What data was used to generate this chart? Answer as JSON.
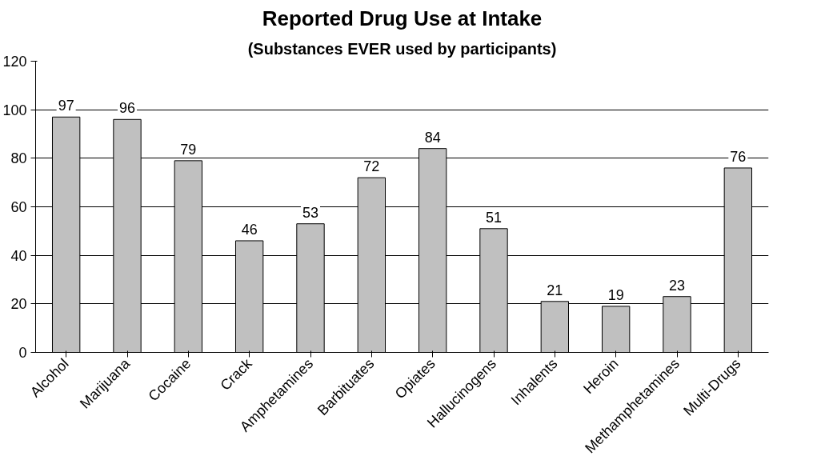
{
  "chart_data": {
    "type": "bar",
    "title": "Reported Drug Use at Intake",
    "subtitle": "(Substances EVER used by participants)",
    "categories": [
      "Alcohol",
      "Marijuana",
      "Cocaine",
      "Crack",
      "Amphetamines",
      "Barbituates",
      "Opiates",
      "Hallucinogens",
      "Inhalents",
      "Heroin",
      "Methamphetamines",
      "Multi-Drugs"
    ],
    "values": [
      97,
      96,
      79,
      46,
      53,
      72,
      84,
      51,
      21,
      19,
      23,
      76
    ],
    "color": "#c0c0c0",
    "ylim": [
      0,
      120
    ],
    "yticks": [
      0,
      20,
      40,
      60,
      80,
      100,
      120
    ],
    "grid": "y",
    "data_labels": true
  }
}
